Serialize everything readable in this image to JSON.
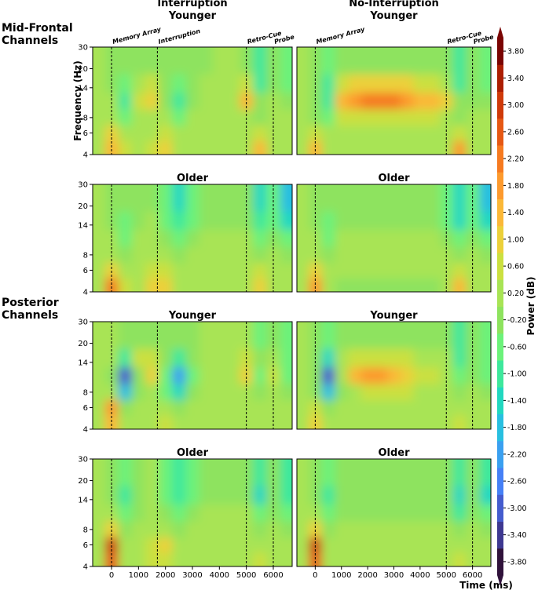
{
  "row_labels": [
    [
      "Mid-Frontal",
      "Channels"
    ],
    [
      "Posterior",
      "Channels"
    ]
  ],
  "colorbar": {
    "label": "Power (dB)",
    "lim": [
      -4,
      4
    ],
    "extend": "both",
    "ticks": [
      {
        "value": 3.8,
        "label": "3.80"
      },
      {
        "value": 3.4,
        "label": "3.40"
      },
      {
        "value": 3.0,
        "label": "3.00"
      },
      {
        "value": 2.6,
        "label": "2.60"
      },
      {
        "value": 2.2,
        "label": "2.20"
      },
      {
        "value": 1.8,
        "label": "1.80"
      },
      {
        "value": 1.4,
        "label": "1.40"
      },
      {
        "value": 1.0,
        "label": "1.00"
      },
      {
        "value": 0.6,
        "label": "0.60"
      },
      {
        "value": 0.2,
        "label": "0.20"
      },
      {
        "value": -0.2,
        "label": "-0.20"
      },
      {
        "value": -0.6,
        "label": "-0.60"
      },
      {
        "value": -1.0,
        "label": "-1.00"
      },
      {
        "value": -1.4,
        "label": "-1.40"
      },
      {
        "value": -1.8,
        "label": "-1.80"
      },
      {
        "value": -2.2,
        "label": "-2.20"
      },
      {
        "value": -2.6,
        "label": "-2.60"
      },
      {
        "value": -3.0,
        "label": "-3.00"
      },
      {
        "value": -3.4,
        "label": "-3.40"
      },
      {
        "value": -3.8,
        "label": "-3.80"
      }
    ],
    "colors": [
      "#30123b",
      "#3e3891",
      "#455cce",
      "#4680f6",
      "#3aa0f0",
      "#28bfe0",
      "#22d8c0",
      "#3ee89c",
      "#6cf27a",
      "#8ee35e",
      "#a8e455",
      "#cbe040",
      "#ecd03a",
      "#fbb838",
      "#fd9a2e",
      "#f67a20",
      "#e65814",
      "#cf3a0a",
      "#ac1e03",
      "#7a0403"
    ]
  },
  "chart_data": [
    {
      "type": "heatmap",
      "title": [
        "Interruption",
        "Younger"
      ],
      "ylabel": "Frequency (Hz)",
      "yscale": "log",
      "x": [
        -500,
        0,
        500,
        1000,
        1500,
        2000,
        2500,
        3000,
        3500,
        4000,
        4500,
        5000,
        5500,
        6000,
        6500
      ],
      "y": [
        4.5,
        6,
        8,
        11,
        15,
        22
      ],
      "values": [
        [
          0.2,
          1.4,
          0.4,
          0.2,
          0.6,
          1.0,
          0.2,
          0.2,
          0.2,
          0.2,
          0.2,
          0.2,
          1.2,
          0.2,
          0.2
        ],
        [
          0.2,
          0.8,
          0.2,
          0.2,
          0.2,
          0.6,
          0.2,
          0.2,
          0.2,
          0.2,
          0.2,
          0.2,
          0.6,
          0.2,
          0.2
        ],
        [
          0.2,
          0.2,
          -0.6,
          0.2,
          0.2,
          0.2,
          -0.6,
          0.2,
          0.2,
          0.2,
          0.2,
          0.2,
          -0.2,
          0.2,
          0.2
        ],
        [
          0.2,
          0.2,
          -1.0,
          0.6,
          1.0,
          -0.2,
          -1.0,
          -0.2,
          0.2,
          0.2,
          0.2,
          1.4,
          -0.2,
          0.2,
          -0.2
        ],
        [
          0.2,
          -0.2,
          -0.6,
          0.2,
          0.6,
          -0.2,
          -0.6,
          -0.2,
          0.2,
          0.2,
          0.2,
          0.6,
          -1.0,
          -0.2,
          -0.6
        ],
        [
          0.2,
          -0.2,
          -0.2,
          -0.2,
          -0.2,
          -0.2,
          -0.2,
          -0.2,
          -0.2,
          0.2,
          0.2,
          -0.2,
          -1.0,
          -0.2,
          -0.8
        ]
      ],
      "xlim": [
        -700,
        6700
      ],
      "ylim": [
        4,
        30
      ],
      "yticks": [
        4,
        6,
        8,
        14,
        20,
        30
      ],
      "events": [
        0,
        1700,
        5000,
        6000
      ],
      "event_labels": [
        "Memory Array",
        "Interruption",
        "Retro-Cue",
        "Probe"
      ]
    },
    {
      "type": "heatmap",
      "title": [
        "No-Interruption",
        "Younger"
      ],
      "yscale": "log",
      "x": [
        -500,
        0,
        500,
        1000,
        1500,
        2000,
        2500,
        3000,
        3500,
        4000,
        4500,
        5000,
        5500,
        6000,
        6500
      ],
      "y": [
        4.5,
        6,
        8,
        11,
        15,
        22
      ],
      "values": [
        [
          0.2,
          1.4,
          0.2,
          0.2,
          0.2,
          0.2,
          0.2,
          0.2,
          0.2,
          0.2,
          0.2,
          0.2,
          1.8,
          0.2,
          0.2
        ],
        [
          0.2,
          0.6,
          0.2,
          0.2,
          0.2,
          0.2,
          0.2,
          0.2,
          0.2,
          0.2,
          0.2,
          0.2,
          0.6,
          0.2,
          0.2
        ],
        [
          0.2,
          -0.2,
          -0.6,
          0.6,
          0.6,
          0.6,
          0.6,
          0.6,
          0.6,
          0.6,
          0.6,
          0.2,
          -0.2,
          0.2,
          0.2
        ],
        [
          0.2,
          -0.2,
          -1.0,
          1.4,
          1.8,
          2.2,
          2.2,
          2.2,
          1.8,
          1.4,
          1.4,
          1.0,
          -0.2,
          -0.2,
          -0.2
        ],
        [
          0.2,
          -0.2,
          -1.0,
          0.6,
          1.0,
          1.0,
          1.0,
          1.0,
          1.0,
          0.6,
          0.6,
          0.2,
          -1.0,
          -0.2,
          -0.6
        ],
        [
          0.2,
          -0.2,
          -0.6,
          -0.2,
          -0.2,
          -0.2,
          -0.2,
          -0.2,
          -0.2,
          -0.2,
          -0.2,
          -0.2,
          -1.0,
          -0.2,
          -0.6
        ]
      ],
      "xlim": [
        -700,
        6700
      ],
      "ylim": [
        4,
        30
      ],
      "events": [
        0,
        5000,
        6000
      ],
      "event_labels": [
        "Memory Array",
        "Retro-Cue",
        "Probe"
      ]
    },
    {
      "type": "heatmap",
      "title": "Older",
      "yscale": "log",
      "x": [
        -500,
        0,
        500,
        1000,
        1500,
        2000,
        2500,
        3000,
        3500,
        4000,
        4500,
        5000,
        5500,
        6000,
        6500
      ],
      "y": [
        4.5,
        6,
        8,
        11,
        15,
        22
      ],
      "values": [
        [
          0.2,
          2.2,
          0.6,
          0.2,
          1.0,
          1.0,
          0.2,
          0.2,
          0.2,
          0.2,
          0.2,
          0.2,
          1.0,
          0.2,
          0.2
        ],
        [
          0.2,
          1.0,
          0.2,
          0.2,
          0.6,
          0.6,
          0.2,
          0.2,
          0.2,
          0.2,
          0.2,
          0.2,
          0.6,
          0.2,
          0.2
        ],
        [
          0.2,
          0.2,
          -0.2,
          0.2,
          0.2,
          0.2,
          -0.2,
          0.2,
          0.2,
          0.2,
          0.2,
          0.2,
          -0.2,
          0.2,
          -0.2
        ],
        [
          0.2,
          0.2,
          -0.6,
          0.2,
          0.2,
          -0.2,
          -0.6,
          -0.2,
          0.2,
          0.2,
          0.2,
          0.2,
          -0.6,
          -0.2,
          -0.6
        ],
        [
          0.2,
          -0.2,
          -0.6,
          -0.2,
          0.2,
          -0.6,
          -1.0,
          -0.6,
          -0.2,
          -0.2,
          -0.2,
          -0.2,
          -1.0,
          -0.6,
          -1.4
        ],
        [
          0.2,
          -0.2,
          -0.2,
          -0.2,
          -0.2,
          -0.6,
          -1.4,
          -0.6,
          -0.2,
          -0.2,
          -0.2,
          -0.2,
          -1.4,
          -0.6,
          -1.8
        ]
      ],
      "xlim": [
        -700,
        6700
      ],
      "ylim": [
        4,
        30
      ],
      "yticks": [
        4,
        6,
        8,
        14,
        20,
        30
      ],
      "events": [
        0,
        1700,
        5000,
        6000
      ]
    },
    {
      "type": "heatmap",
      "title": "Older",
      "yscale": "log",
      "x": [
        -500,
        0,
        500,
        1000,
        1500,
        2000,
        2500,
        3000,
        3500,
        4000,
        4500,
        5000,
        5500,
        6000,
        6500
      ],
      "y": [
        4.5,
        6,
        8,
        11,
        15,
        22
      ],
      "values": [
        [
          0.2,
          1.8,
          0.2,
          -0.2,
          -0.2,
          -0.2,
          -0.2,
          -0.2,
          -0.2,
          -0.2,
          -0.2,
          0.2,
          1.4,
          0.2,
          0.2
        ],
        [
          0.2,
          1.0,
          0.2,
          0.2,
          0.2,
          0.2,
          0.2,
          0.2,
          0.2,
          0.2,
          0.2,
          0.2,
          0.6,
          0.2,
          0.2
        ],
        [
          0.2,
          0.2,
          -0.2,
          0.2,
          0.2,
          0.2,
          0.2,
          0.2,
          0.2,
          0.2,
          0.2,
          0.2,
          -0.2,
          0.2,
          -0.2
        ],
        [
          0.2,
          0.2,
          -0.6,
          0.2,
          0.2,
          0.2,
          0.2,
          0.2,
          0.2,
          0.2,
          0.2,
          -0.2,
          -0.6,
          -0.2,
          -0.6
        ],
        [
          0.2,
          -0.2,
          -0.6,
          -0.2,
          -0.2,
          -0.2,
          -0.2,
          -0.2,
          -0.2,
          -0.2,
          -0.2,
          -0.6,
          -1.4,
          -0.6,
          -1.4
        ],
        [
          0.2,
          -0.2,
          -0.2,
          -0.2,
          -0.2,
          -0.2,
          -0.2,
          -0.2,
          -0.2,
          -0.2,
          -0.2,
          -0.6,
          -1.4,
          -0.6,
          -1.8
        ]
      ],
      "xlim": [
        -700,
        6700
      ],
      "ylim": [
        4,
        30
      ],
      "events": [
        0,
        5000,
        6000
      ]
    },
    {
      "type": "heatmap",
      "title": "Younger",
      "yscale": "log",
      "x": [
        -500,
        0,
        500,
        1000,
        1500,
        2000,
        2500,
        3000,
        3500,
        4000,
        4500,
        5000,
        5500,
        6000,
        6500
      ],
      "y": [
        4.5,
        6,
        8,
        11,
        15,
        22
      ],
      "values": [
        [
          0.2,
          1.4,
          0.2,
          0.2,
          0.2,
          0.6,
          0.2,
          0.2,
          0.2,
          0.2,
          0.2,
          0.2,
          0.2,
          0.2,
          0.2
        ],
        [
          0.2,
          1.8,
          -0.2,
          0.2,
          0.2,
          0.2,
          -0.2,
          0.2,
          0.2,
          0.2,
          0.2,
          0.2,
          0.2,
          0.2,
          0.2
        ],
        [
          0.2,
          0.2,
          -1.8,
          -0.2,
          0.2,
          -0.6,
          -1.4,
          -0.2,
          0.2,
          0.2,
          0.2,
          0.2,
          -0.2,
          0.2,
          -0.2
        ],
        [
          0.2,
          -0.2,
          -3.0,
          -0.2,
          1.0,
          -0.6,
          -2.2,
          -0.6,
          0.2,
          0.2,
          0.2,
          1.0,
          -0.6,
          0.6,
          -0.6
        ],
        [
          0.2,
          0.2,
          -1.0,
          0.6,
          0.6,
          -0.2,
          -1.0,
          -0.2,
          0.2,
          0.2,
          0.2,
          0.6,
          -0.2,
          0.2,
          -0.6
        ],
        [
          0.2,
          0.2,
          -0.2,
          -0.2,
          -0.2,
          -0.2,
          -0.2,
          -0.2,
          0.2,
          0.2,
          0.2,
          0.2,
          -0.6,
          -0.2,
          -0.6
        ]
      ],
      "xlim": [
        -700,
        6700
      ],
      "ylim": [
        4,
        30
      ],
      "yticks": [
        4,
        6,
        8,
        14,
        20,
        30
      ],
      "events": [
        0,
        1700,
        5000,
        6000
      ]
    },
    {
      "type": "heatmap",
      "title": "Younger",
      "yscale": "log",
      "x": [
        -500,
        0,
        500,
        1000,
        1500,
        2000,
        2500,
        3000,
        3500,
        4000,
        4500,
        5000,
        5500,
        6000,
        6500
      ],
      "y": [
        4.5,
        6,
        8,
        11,
        15,
        22
      ],
      "values": [
        [
          0.2,
          1.0,
          0.2,
          0.2,
          0.2,
          0.2,
          0.2,
          0.2,
          0.2,
          0.2,
          0.2,
          0.2,
          0.6,
          0.2,
          0.2
        ],
        [
          0.2,
          0.6,
          -0.2,
          0.2,
          0.2,
          0.2,
          0.2,
          0.2,
          0.2,
          0.2,
          0.2,
          0.2,
          0.2,
          0.2,
          0.2
        ],
        [
          0.2,
          -0.2,
          -1.8,
          -0.2,
          0.2,
          0.6,
          0.6,
          0.6,
          0.6,
          0.2,
          0.2,
          0.2,
          -0.2,
          0.2,
          -0.2
        ],
        [
          0.2,
          -0.2,
          -3.0,
          0.2,
          1.4,
          1.8,
          1.8,
          1.4,
          1.0,
          0.6,
          0.6,
          0.2,
          -0.6,
          -0.2,
          -0.6
        ],
        [
          0.2,
          -0.2,
          -1.4,
          0.2,
          0.6,
          0.6,
          0.6,
          0.6,
          0.6,
          0.2,
          0.2,
          0.2,
          -1.0,
          -0.2,
          -0.6
        ],
        [
          0.2,
          -0.2,
          -0.6,
          -0.2,
          -0.2,
          -0.2,
          -0.2,
          -0.2,
          -0.2,
          -0.2,
          -0.2,
          -0.2,
          -1.0,
          -0.2,
          -0.6
        ]
      ],
      "xlim": [
        -700,
        6700
      ],
      "ylim": [
        4,
        30
      ],
      "events": [
        0,
        5000,
        6000
      ]
    },
    {
      "type": "heatmap",
      "title": "Older",
      "yscale": "log",
      "x": [
        -500,
        0,
        500,
        1000,
        1500,
        2000,
        2500,
        3000,
        3500,
        4000,
        4500,
        5000,
        5500,
        6000,
        6500
      ],
      "y": [
        4.5,
        6,
        8,
        11,
        15,
        22
      ],
      "values": [
        [
          0.2,
          2.6,
          0.2,
          0.2,
          0.6,
          0.6,
          0.2,
          0.2,
          0.2,
          0.2,
          0.2,
          0.2,
          0.6,
          0.2,
          0.2
        ],
        [
          0.2,
          3.0,
          0.2,
          0.2,
          0.6,
          1.0,
          0.2,
          0.2,
          0.2,
          0.2,
          0.2,
          0.2,
          0.2,
          0.2,
          0.2
        ],
        [
          0.2,
          1.0,
          -0.2,
          0.2,
          0.2,
          0.2,
          -0.2,
          0.2,
          0.2,
          0.2,
          0.2,
          0.2,
          -0.2,
          0.2,
          -0.2
        ],
        [
          0.2,
          0.2,
          -0.6,
          -0.2,
          0.2,
          -0.2,
          -0.6,
          -0.2,
          0.2,
          0.2,
          0.2,
          0.2,
          -0.6,
          -0.2,
          -0.6
        ],
        [
          0.2,
          -0.2,
          -1.0,
          -0.2,
          0.2,
          -0.6,
          -1.0,
          -0.6,
          -0.2,
          -0.2,
          -0.2,
          -0.2,
          -1.4,
          -0.2,
          -1.0
        ],
        [
          0.2,
          -0.2,
          -0.6,
          -0.2,
          0.2,
          -0.6,
          -1.0,
          -0.6,
          -0.2,
          -0.2,
          -0.2,
          -0.2,
          -1.0,
          -0.2,
          -1.0
        ]
      ],
      "xlim": [
        -700,
        6700
      ],
      "ylim": [
        4,
        30
      ],
      "yticks": [
        4,
        6,
        8,
        14,
        20,
        30
      ],
      "xticks": [
        0,
        1000,
        2000,
        3000,
        4000,
        5000,
        6000
      ],
      "events": [
        0,
        1700,
        5000,
        6000
      ]
    },
    {
      "type": "heatmap",
      "title": "Older",
      "yscale": "log",
      "xlabel": "Time (ms)",
      "x": [
        -500,
        0,
        500,
        1000,
        1500,
        2000,
        2500,
        3000,
        3500,
        4000,
        4500,
        5000,
        5500,
        6000,
        6500
      ],
      "y": [
        4.5,
        6,
        8,
        11,
        15,
        22
      ],
      "values": [
        [
          0.2,
          2.6,
          0.2,
          0.2,
          0.2,
          0.2,
          0.2,
          0.2,
          0.2,
          0.2,
          0.2,
          0.2,
          0.6,
          0.2,
          0.2
        ],
        [
          0.2,
          3.0,
          0.2,
          0.2,
          0.2,
          0.2,
          0.2,
          0.2,
          0.2,
          0.2,
          0.2,
          0.2,
          0.2,
          0.2,
          0.2
        ],
        [
          0.2,
          1.0,
          -0.2,
          0.2,
          0.2,
          0.2,
          0.2,
          0.2,
          0.2,
          0.2,
          0.2,
          0.2,
          -0.2,
          0.2,
          -0.2
        ],
        [
          0.2,
          0.2,
          -0.6,
          -0.2,
          -0.2,
          -0.2,
          -0.2,
          -0.2,
          -0.2,
          -0.2,
          -0.2,
          -0.2,
          -1.0,
          -0.2,
          -0.6
        ],
        [
          0.2,
          -0.2,
          -1.0,
          -0.2,
          -0.2,
          -0.2,
          -0.2,
          -0.2,
          -0.2,
          -0.2,
          -0.2,
          -0.2,
          -1.4,
          -0.2,
          -1.4
        ],
        [
          0.2,
          -0.2,
          -0.6,
          -0.2,
          -0.2,
          -0.2,
          -0.2,
          -0.2,
          -0.2,
          -0.2,
          -0.2,
          -0.2,
          -1.0,
          -0.2,
          -1.0
        ]
      ],
      "xlim": [
        -700,
        6700
      ],
      "ylim": [
        4,
        30
      ],
      "xticks": [
        0,
        1000,
        2000,
        3000,
        4000,
        5000,
        6000
      ],
      "events": [
        0,
        5000,
        6000
      ]
    }
  ]
}
